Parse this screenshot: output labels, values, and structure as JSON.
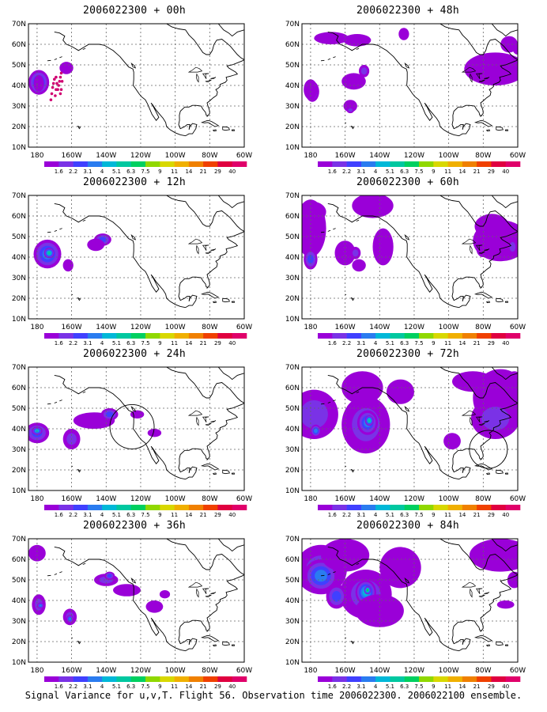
{
  "panels": [
    {
      "title": "2006022300 + 00h"
    },
    {
      "title": "2006022300 + 48h"
    },
    {
      "title": "2006022300 + 12h"
    },
    {
      "title": "2006022300 + 60h"
    },
    {
      "title": "2006022300 + 24h"
    },
    {
      "title": "2006022300 + 72h"
    },
    {
      "title": "2006022300 + 36h"
    },
    {
      "title": "2006022300 + 84h"
    }
  ],
  "axes": {
    "y_labels": [
      "70N",
      "60N",
      "50N",
      "40N",
      "30N",
      "20N",
      "10N"
    ],
    "x_labels": [
      "180",
      "160W",
      "140W",
      "120W",
      "100W",
      "80W",
      "60W"
    ]
  },
  "colorbar": {
    "labels": [
      "1.6",
      "2.2",
      "3.1",
      "4",
      "5.1",
      "6.3",
      "7.5",
      "9",
      "11",
      "14",
      "21",
      "29",
      "40"
    ],
    "colors": [
      "#9a00d8",
      "#7a32e6",
      "#4040ff",
      "#2a7cf0",
      "#00b8d8",
      "#00c8a0",
      "#00d060",
      "#90d800",
      "#d8d800",
      "#f0b000",
      "#f08000",
      "#f04000",
      "#e00040",
      "#e0006a"
    ]
  },
  "caption": "Signal Variance for u,v,T. Flight 56. Observation time 2006022300. 2006022100 ensemble."
}
